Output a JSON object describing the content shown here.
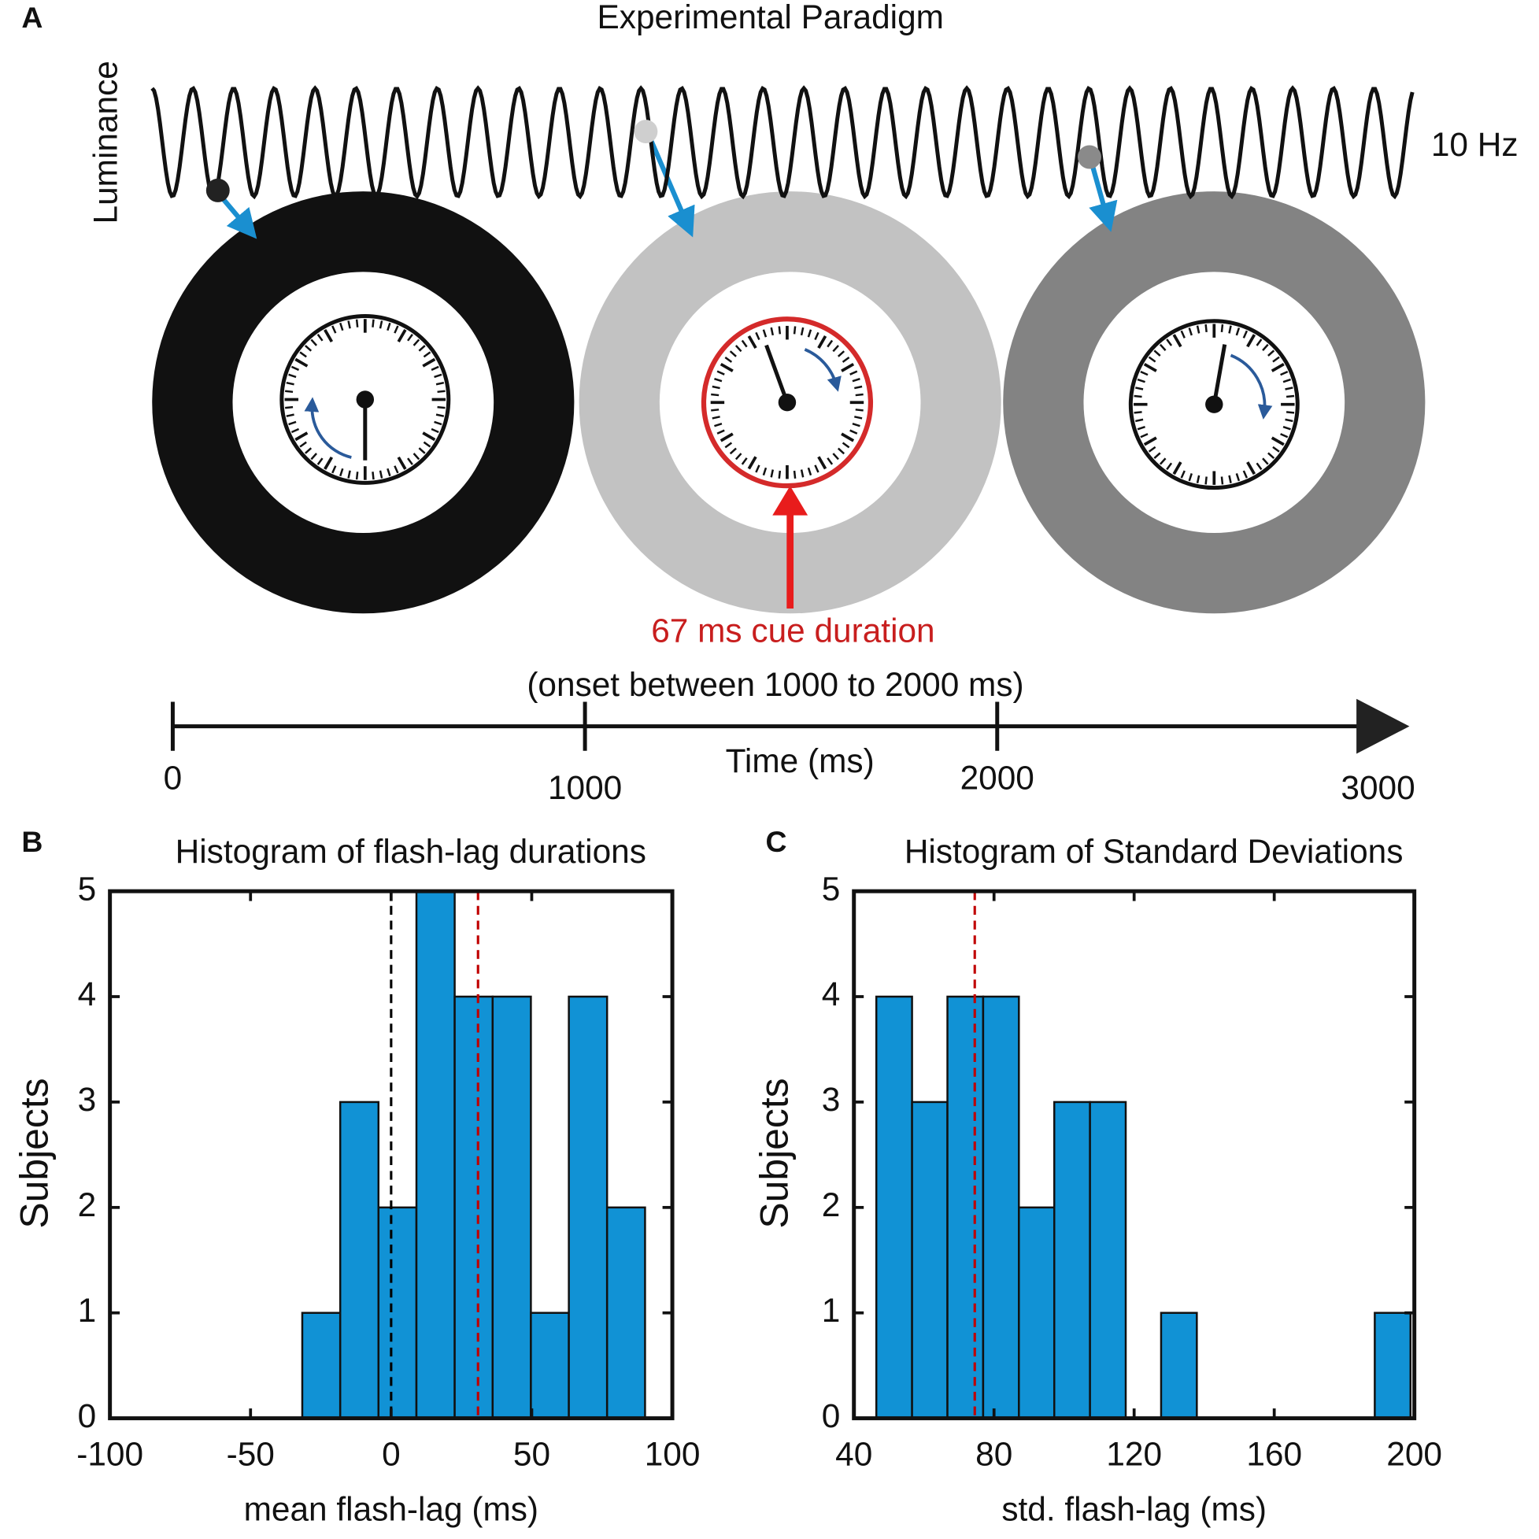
{
  "paradigm": {
    "panel": "A",
    "title": "Experimental Paradigm",
    "ylabel": "Luminance",
    "frequency_label": "10 Hz",
    "cue_label": "67 ms cue duration",
    "onset_label": "(onset between 1000 to 2000 ms)",
    "timeline": {
      "label": "Time (ms)",
      "ticks": [
        0,
        1000,
        2000,
        3000
      ]
    }
  },
  "chart_data": [
    {
      "type": "histogram",
      "panel": "B",
      "title": "Histogram of flash-lag durations",
      "xlabel": "mean flash-lag (ms)",
      "ylabel": "Subjects",
      "bins": [
        -31.6,
        -18.1,
        -4.5,
        9.0,
        22.6,
        36.1,
        49.7,
        63.2,
        76.8,
        90.3
      ],
      "values": [
        1,
        3,
        2,
        5,
        4,
        4,
        1,
        4,
        2
      ],
      "color": "#1192d5",
      "xlim": [
        -100,
        100
      ],
      "xticks": [
        -100,
        -50,
        0,
        50,
        100
      ],
      "ylim": [
        0,
        5
      ],
      "yticks": [
        0,
        1,
        2,
        3,
        4,
        5
      ],
      "reference_lines": [
        {
          "value": 0,
          "color": "#000000"
        },
        {
          "value": 30.9,
          "color": "#c00000"
        }
      ]
    },
    {
      "type": "histogram",
      "panel": "C",
      "title": "Histogram of Standard Deviations",
      "xlabel": "std. flash-lag (ms)",
      "ylabel": "Subjects",
      "bins": [
        46.4,
        56.6,
        66.7,
        76.9,
        87.1,
        97.2,
        107.4,
        117.6,
        127.7,
        137.9,
        148.1,
        158.2,
        168.4,
        178.6,
        188.7,
        198.9
      ],
      "values": [
        4,
        3,
        4,
        4,
        2,
        3,
        3,
        0,
        1,
        0,
        0,
        0,
        0,
        0,
        1
      ],
      "color": "#1192d5",
      "xlim": [
        40,
        200
      ],
      "xticks": [
        40,
        80,
        120,
        160,
        200
      ],
      "ylim": [
        0,
        5
      ],
      "yticks": [
        0,
        1,
        2,
        3,
        4,
        5
      ],
      "reference_lines": [
        {
          "value": 74.5,
          "color": "#c00000"
        }
      ]
    }
  ]
}
